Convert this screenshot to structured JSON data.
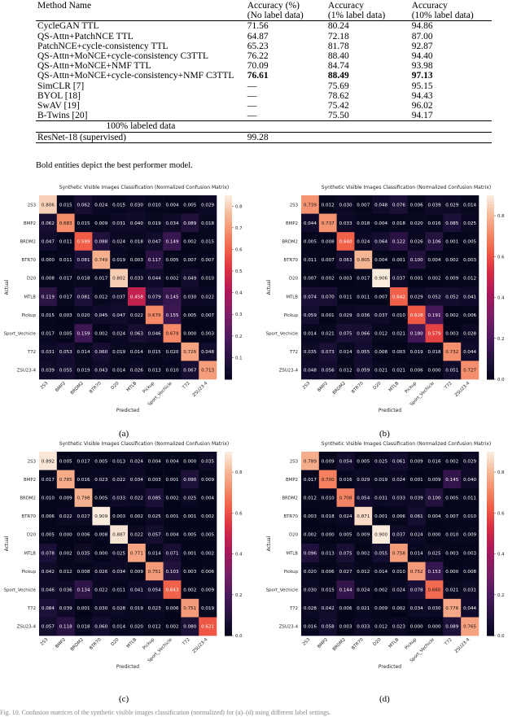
{
  "table": {
    "headers": [
      [
        "Method Name"
      ],
      [
        "Accuracy (%)",
        "(No label data)"
      ],
      [
        "Accuracy",
        "(1% label data)"
      ],
      [
        "Accuracy",
        "(10% label data)"
      ]
    ],
    "rows": [
      {
        "name": "CycleGAN TTL",
        "a": "71.56",
        "b": "80.24",
        "c": "94.86"
      },
      {
        "name": "QS-Attn+PatchNCE TTL",
        "a": "64.87",
        "b": "72.18",
        "c": "87.00"
      },
      {
        "name": "PatchNCE+cycle-consistency TTL",
        "a": "65.23",
        "b": "81.78",
        "c": "92.87"
      },
      {
        "name": "QS-Attn+MoNCE+cycle-consistency C3TTL",
        "a": "76.22",
        "b": "88.40",
        "c": "94.40"
      },
      {
        "name": "QS-Attn+MoNCE+NMF TTL",
        "a": "70.09",
        "b": "84.74",
        "c": "93.98"
      },
      {
        "name": "QS-Attn+MoNCE+cycle-consistency+NMF C3TTL",
        "a": "76.61",
        "b": "88.49",
        "c": "97.13",
        "bold": true
      },
      {
        "name": "SimCLR [7]",
        "a": "—",
        "b": "75.69",
        "c": "95.15"
      },
      {
        "name": "BYOL [18]",
        "a": "—",
        "b": "78.62",
        "c": "94.43"
      },
      {
        "name": "SwAV [19]",
        "a": "—",
        "b": "75.42",
        "c": "96.02"
      },
      {
        "name": "B-Twins [20]",
        "a": "—",
        "b": "75.50",
        "c": "94.17"
      }
    ],
    "section_label": "100% labeled data",
    "supervised": {
      "name": "ResNet-18 (supervised)",
      "a": "99.28"
    }
  },
  "note": "Bold entities depict the best performer model.",
  "bottom_caption": "Fig. 10. Confusion matrices of the synthetic visible images classification (normalized) for (a)–(d) using different label settings.",
  "chart_data": [
    {
      "type": "heatmap",
      "title": "Synthetic Visible Images Classification (Normalized Confusion Matrix)",
      "xlabel": "Predicted",
      "ylabel": "Actual",
      "labels": [
        "2S3",
        "BMP2",
        "BRDM2",
        "BTR70",
        "D20",
        "MTLB",
        "Pickup",
        "Sport_Vechicle",
        "T72",
        "ZSU23-4"
      ],
      "colorbar_ticks": [
        "0.1",
        "0.2",
        "0.3",
        "0.4",
        "0.5",
        "0.6",
        "0.7",
        "0.8"
      ],
      "vmin": 0,
      "vmax": 0.85,
      "caption": "(a)",
      "matrix": [
        [
          0.806,
          0.015,
          0.062,
          0.024,
          0.015,
          0.03,
          0.01,
          0.004,
          0.005,
          0.029
        ],
        [
          0.062,
          0.683,
          0.015,
          0.009,
          0.031,
          0.04,
          0.019,
          0.034,
          0.089,
          0.018
        ],
        [
          0.047,
          0.011,
          0.599,
          0.088,
          0.024,
          0.018,
          0.047,
          0.149,
          0.002,
          0.015
        ],
        [
          0.0,
          0.011,
          0.081,
          0.749,
          0.019,
          0.003,
          0.117,
          0.005,
          0.007,
          0.007
        ],
        [
          0.008,
          0.017,
          0.018,
          0.017,
          0.802,
          0.033,
          0.044,
          0.002,
          0.049,
          0.01
        ],
        [
          0.119,
          0.017,
          0.081,
          0.012,
          0.037,
          0.458,
          0.079,
          0.145,
          0.03,
          0.022
        ],
        [
          0.015,
          0.003,
          0.02,
          0.045,
          0.047,
          0.022,
          0.679,
          0.155,
          0.005,
          0.007
        ],
        [
          0.017,
          0.005,
          0.159,
          0.002,
          0.024,
          0.063,
          0.046,
          0.679,
          0.0,
          0.003
        ],
        [
          0.031,
          0.053,
          0.014,
          0.06,
          0.019,
          0.014,
          0.015,
          0.02,
          0.726,
          0.048
        ],
        [
          0.039,
          0.055,
          0.019,
          0.043,
          0.014,
          0.026,
          0.013,
          0.01,
          0.067,
          0.713
        ]
      ]
    },
    {
      "type": "heatmap",
      "title": "Synthetic Visible Images Classification (Normalized Confusion Matrix)",
      "xlabel": "Predicted",
      "ylabel": "Actual",
      "labels": [
        "2S3",
        "BMP2",
        "BRDM2",
        "BTR70",
        "D20",
        "MTLB",
        "Pickup",
        "Sport_Vechicle",
        "T72",
        "ZSU23-4"
      ],
      "colorbar_ticks": [
        "0.0",
        "0.2",
        "0.4",
        "0.6",
        "0.8"
      ],
      "vmin": 0,
      "vmax": 0.9,
      "caption": "(b)",
      "matrix": [
        [
          0.739,
          0.012,
          0.03,
          0.007,
          0.048,
          0.076,
          0.006,
          0.039,
          0.029,
          0.014
        ],
        [
          0.044,
          0.737,
          0.033,
          0.018,
          0.004,
          0.018,
          0.02,
          0.016,
          0.085,
          0.025
        ],
        [
          0.005,
          0.008,
          0.64,
          0.024,
          0.064,
          0.122,
          0.026,
          0.106,
          0.001,
          0.005
        ],
        [
          0.011,
          0.007,
          0.063,
          0.805,
          0.004,
          0.001,
          0.1,
          0.004,
          0.002,
          0.003
        ],
        [
          0.007,
          0.002,
          0.003,
          0.017,
          0.906,
          0.037,
          0.001,
          0.002,
          0.009,
          0.012
        ],
        [
          0.074,
          0.07,
          0.011,
          0.011,
          0.007,
          0.642,
          0.029,
          0.052,
          0.052,
          0.041
        ],
        [
          0.059,
          0.001,
          0.029,
          0.036,
          0.037,
          0.01,
          0.628,
          0.191,
          0.002,
          0.006
        ],
        [
          0.014,
          0.021,
          0.075,
          0.066,
          0.012,
          0.021,
          0.18,
          0.579,
          0.003,
          0.028
        ],
        [
          0.035,
          0.073,
          0.014,
          0.055,
          0.008,
          0.003,
          0.019,
          0.018,
          0.732,
          0.044
        ],
        [
          0.048,
          0.056,
          0.012,
          0.059,
          0.021,
          0.021,
          0.006,
          0.0,
          0.051,
          0.727
        ]
      ]
    },
    {
      "type": "heatmap",
      "title": "Synthetic Visible Images Classification (Normalized Confusion Matrix)",
      "xlabel": "Predicted",
      "ylabel": "Actual",
      "labels": [
        "2S3",
        "BMP2",
        "BRDM2",
        "BTR70",
        "D20",
        "MTLB",
        "Pickup",
        "Sport_Vechicle",
        "T72",
        "ZSU23-4"
      ],
      "colorbar_ticks": [
        "0.0",
        "0.2",
        "0.4",
        "0.6",
        "0.8"
      ],
      "vmin": 0,
      "vmax": 0.9,
      "caption": "(c)",
      "matrix": [
        [
          0.892,
          0.005,
          0.017,
          0.005,
          0.013,
          0.024,
          0.004,
          0.004,
          0.0,
          0.035
        ],
        [
          0.017,
          0.785,
          0.016,
          0.023,
          0.022,
          0.034,
          0.003,
          0.001,
          0.09,
          0.009
        ],
        [
          0.01,
          0.009,
          0.798,
          0.005,
          0.033,
          0.022,
          0.085,
          0.002,
          0.025,
          0.004
        ],
        [
          0.006,
          0.022,
          0.027,
          0.909,
          0.003,
          0.002,
          0.025,
          0.001,
          0.001,
          0.002
        ],
        [
          0.005,
          0.0,
          0.006,
          0.008,
          0.887,
          0.022,
          0.057,
          0.004,
          0.005,
          0.005
        ],
        [
          0.078,
          0.002,
          0.035,
          0.0,
          0.025,
          0.771,
          0.014,
          0.071,
          0.001,
          0.002
        ],
        [
          0.042,
          0.012,
          0.008,
          0.026,
          0.034,
          0.009,
          0.751,
          0.103,
          0.003,
          0.006
        ],
        [
          0.046,
          0.036,
          0.134,
          0.022,
          0.011,
          0.041,
          0.054,
          0.643,
          0.002,
          0.009
        ],
        [
          0.084,
          0.039,
          0.001,
          0.03,
          0.028,
          0.019,
          0.023,
          0.006,
          0.751,
          0.019
        ],
        [
          0.057,
          0.118,
          0.018,
          0.06,
          0.014,
          0.02,
          0.012,
          0.002,
          0.08,
          0.621
        ]
      ]
    },
    {
      "type": "heatmap",
      "title": "Synthetic Visible Images Classification (Normalized Confusion Matrix)",
      "xlabel": "Predicted",
      "ylabel": "Actual",
      "labels": [
        "2S3",
        "BMP2",
        "BRDM2",
        "BTR70",
        "D20",
        "MTLB",
        "Pickup",
        "Sport_Vechicle",
        "T72",
        "ZSU23-4"
      ],
      "colorbar_ticks": [
        "0.0",
        "0.2",
        "0.4",
        "0.6",
        "0.8"
      ],
      "vmin": 0,
      "vmax": 0.9,
      "caption": "(d)",
      "matrix": [
        [
          0.789,
          0.009,
          0.054,
          0.005,
          0.025,
          0.061,
          0.009,
          0.016,
          0.002,
          0.029
        ],
        [
          0.017,
          0.7,
          0.016,
          0.029,
          0.019,
          0.024,
          0.001,
          0.009,
          0.145,
          0.04
        ],
        [
          0.012,
          0.01,
          0.708,
          0.054,
          0.031,
          0.033,
          0.039,
          0.1,
          0.005,
          0.011
        ],
        [
          0.003,
          0.018,
          0.024,
          0.871,
          0.001,
          0.006,
          0.061,
          0.004,
          0.007,
          0.01
        ],
        [
          0.002,
          0.0,
          0.005,
          0.009,
          0.9,
          0.037,
          0.024,
          0.0,
          0.01,
          0.009
        ],
        [
          0.096,
          0.013,
          0.075,
          0.002,
          0.055,
          0.758,
          0.014,
          0.025,
          0.003,
          0.003
        ],
        [
          0.02,
          0.006,
          0.027,
          0.012,
          0.014,
          0.01,
          0.752,
          0.153,
          0.0,
          0.008
        ],
        [
          0.03,
          0.015,
          0.144,
          0.024,
          0.002,
          0.024,
          0.078,
          0.66,
          0.021,
          0.031
        ],
        [
          0.028,
          0.042,
          0.006,
          0.021,
          0.009,
          0.002,
          0.034,
          0.03,
          0.776,
          0.044
        ],
        [
          0.016,
          0.058,
          0.003,
          0.033,
          0.012,
          0.023,
          0.0,
          0.0,
          0.089,
          0.765
        ]
      ]
    }
  ]
}
